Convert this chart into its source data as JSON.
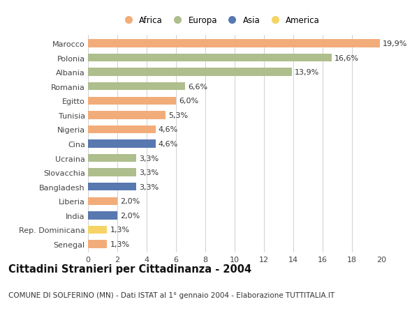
{
  "countries": [
    "Marocco",
    "Polonia",
    "Albania",
    "Romania",
    "Egitto",
    "Tunisia",
    "Nigeria",
    "Cina",
    "Ucraina",
    "Slovacchia",
    "Bangladesh",
    "Liberia",
    "India",
    "Rep. Dominicana",
    "Senegal"
  ],
  "values": [
    19.9,
    16.6,
    13.9,
    6.6,
    6.0,
    5.3,
    4.6,
    4.6,
    3.3,
    3.3,
    3.3,
    2.0,
    2.0,
    1.3,
    1.3
  ],
  "labels": [
    "19,9%",
    "16,6%",
    "13,9%",
    "6,6%",
    "6,0%",
    "5,3%",
    "4,6%",
    "4,6%",
    "3,3%",
    "3,3%",
    "3,3%",
    "2,0%",
    "2,0%",
    "1,3%",
    "1,3%"
  ],
  "continents": [
    "Africa",
    "Europa",
    "Europa",
    "Europa",
    "Africa",
    "Africa",
    "Africa",
    "Asia",
    "Europa",
    "Europa",
    "Asia",
    "Africa",
    "Asia",
    "America",
    "Africa"
  ],
  "continent_colors": {
    "Africa": "#F2AC7A",
    "Europa": "#AEBE8C",
    "Asia": "#5878B0",
    "America": "#F5D465"
  },
  "legend_order": [
    "Africa",
    "Europa",
    "Asia",
    "America"
  ],
  "title": "Cittadini Stranieri per Cittadinanza - 2004",
  "subtitle": "COMUNE DI SOLFERINO (MN) - Dati ISTAT al 1° gennaio 2004 - Elaborazione TUTTITALIA.IT",
  "xlim": [
    0,
    20
  ],
  "xticks": [
    0,
    2,
    4,
    6,
    8,
    10,
    12,
    14,
    16,
    18,
    20
  ],
  "bg_color": "#ffffff",
  "grid_color": "#d0d0d0",
  "bar_height": 0.55,
  "label_fontsize": 8,
  "title_fontsize": 10.5,
  "subtitle_fontsize": 7.5,
  "ytick_fontsize": 8,
  "xtick_fontsize": 8
}
